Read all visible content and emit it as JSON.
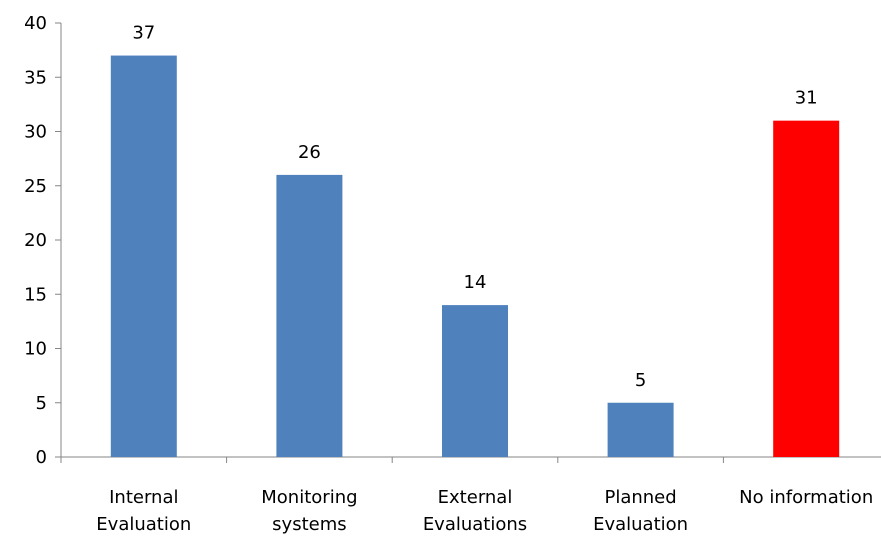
{
  "chart_data": {
    "type": "bar",
    "title": "",
    "xlabel": "",
    "ylabel": "",
    "ylim": [
      0,
      40
    ],
    "yticks": [
      0,
      5,
      10,
      15,
      20,
      25,
      30,
      35,
      40
    ],
    "grid": false,
    "categories": [
      [
        "Internal",
        "Evaluation"
      ],
      [
        "Monitoring",
        "systems"
      ],
      [
        "External",
        "Evaluations"
      ],
      [
        "Planned",
        "Evaluation"
      ],
      [
        "No information"
      ]
    ],
    "values": [
      37,
      26,
      14,
      5,
      31
    ],
    "colors": [
      "#4f81bd",
      "#4f81bd",
      "#4f81bd",
      "#4f81bd",
      "#ff0000"
    ],
    "data_labels": [
      "37",
      "26",
      "14",
      "5",
      "31"
    ]
  }
}
